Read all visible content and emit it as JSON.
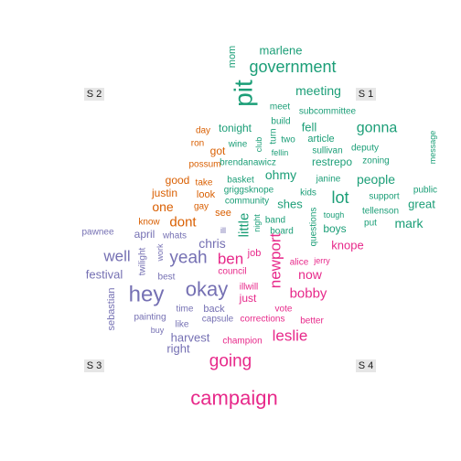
{
  "chart_data": {
    "type": "comparison-wordcloud",
    "groups": [
      {
        "label": "S 1",
        "color": "#1b9e77"
      },
      {
        "label": "S 2",
        "color": "#d95f02"
      },
      {
        "label": "S 3",
        "color": "#7570b3"
      },
      {
        "label": "S 4",
        "color": "#e7298a"
      }
    ],
    "words": [
      {
        "text": "pit",
        "group": "S 1",
        "size": 28,
        "rotated": true
      },
      {
        "text": "government",
        "group": "S 1",
        "size": 18
      },
      {
        "text": "mom",
        "group": "S 1",
        "size": 11,
        "rotated": true
      },
      {
        "text": "marlene",
        "group": "S 1",
        "size": 13
      },
      {
        "text": "meeting",
        "group": "S 1",
        "size": 14
      },
      {
        "text": "meet",
        "group": "S 1",
        "size": 10
      },
      {
        "text": "subcommittee",
        "group": "S 1",
        "size": 10
      },
      {
        "text": "build",
        "group": "S 1",
        "size": 10
      },
      {
        "text": "turn",
        "group": "S 1",
        "size": 10,
        "rotated": true
      },
      {
        "text": "fell",
        "group": "S 1",
        "size": 13
      },
      {
        "text": "gonna",
        "group": "S 1",
        "size": 16
      },
      {
        "text": "two",
        "group": "S 1",
        "size": 10
      },
      {
        "text": "article",
        "group": "S 1",
        "size": 11
      },
      {
        "text": "sullivan",
        "group": "S 1",
        "size": 10
      },
      {
        "text": "deputy",
        "group": "S 1",
        "size": 10
      },
      {
        "text": "restrepo",
        "group": "S 1",
        "size": 12
      },
      {
        "text": "zoning",
        "group": "S 1",
        "size": 10
      },
      {
        "text": "message",
        "group": "S 1",
        "size": 9,
        "rotated": true
      },
      {
        "text": "tonight",
        "group": "S 1",
        "size": 12
      },
      {
        "text": "wine",
        "group": "S 1",
        "size": 10
      },
      {
        "text": "club",
        "group": "S 1",
        "size": 9,
        "rotated": true
      },
      {
        "text": "fellin",
        "group": "S 1",
        "size": 9
      },
      {
        "text": "brendanawicz",
        "group": "S 1",
        "size": 10
      },
      {
        "text": "ohmy",
        "group": "S 1",
        "size": 14
      },
      {
        "text": "people",
        "group": "S 1",
        "size": 14
      },
      {
        "text": "basket",
        "group": "S 1",
        "size": 10
      },
      {
        "text": "janine",
        "group": "S 1",
        "size": 10
      },
      {
        "text": "griggsknope",
        "group": "S 1",
        "size": 10
      },
      {
        "text": "kids",
        "group": "S 1",
        "size": 10
      },
      {
        "text": "lot",
        "group": "S 1",
        "size": 18
      },
      {
        "text": "support",
        "group": "S 1",
        "size": 10
      },
      {
        "text": "public",
        "group": "S 1",
        "size": 10
      },
      {
        "text": "great",
        "group": "S 1",
        "size": 13
      },
      {
        "text": "community",
        "group": "S 1",
        "size": 10
      },
      {
        "text": "shes",
        "group": "S 1",
        "size": 13
      },
      {
        "text": "tough",
        "group": "S 1",
        "size": 9
      },
      {
        "text": "tellenson",
        "group": "S 1",
        "size": 10
      },
      {
        "text": "mark",
        "group": "S 1",
        "size": 14
      },
      {
        "text": "put",
        "group": "S 1",
        "size": 10
      },
      {
        "text": "little",
        "group": "S 1",
        "size": 15,
        "rotated": true
      },
      {
        "text": "night",
        "group": "S 1",
        "size": 9,
        "rotated": true
      },
      {
        "text": "band",
        "group": "S 1",
        "size": 10
      },
      {
        "text": "board",
        "group": "S 1",
        "size": 10
      },
      {
        "text": "questions",
        "group": "S 1",
        "size": 10,
        "rotated": true
      },
      {
        "text": "boys",
        "group": "S 1",
        "size": 12
      },
      {
        "text": "day",
        "group": "S 2",
        "size": 10
      },
      {
        "text": "ron",
        "group": "S 2",
        "size": 10
      },
      {
        "text": "got",
        "group": "S 2",
        "size": 12
      },
      {
        "text": "possum",
        "group": "S 2",
        "size": 10
      },
      {
        "text": "good",
        "group": "S 2",
        "size": 12
      },
      {
        "text": "take",
        "group": "S 2",
        "size": 10
      },
      {
        "text": "justin",
        "group": "S 2",
        "size": 12
      },
      {
        "text": "look",
        "group": "S 2",
        "size": 11
      },
      {
        "text": "one",
        "group": "S 2",
        "size": 14
      },
      {
        "text": "gay",
        "group": "S 2",
        "size": 10
      },
      {
        "text": "see",
        "group": "S 2",
        "size": 11
      },
      {
        "text": "know",
        "group": "S 2",
        "size": 10
      },
      {
        "text": "dont",
        "group": "S 2",
        "size": 15
      },
      {
        "text": "pawnee",
        "group": "S 3",
        "size": 10
      },
      {
        "text": "april",
        "group": "S 3",
        "size": 12
      },
      {
        "text": "whats",
        "group": "S 3",
        "size": 10
      },
      {
        "text": "ill",
        "group": "S 3",
        "size": 9
      },
      {
        "text": "well",
        "group": "S 3",
        "size": 17
      },
      {
        "text": "twilight",
        "group": "S 3",
        "size": 10,
        "rotated": true
      },
      {
        "text": "work",
        "group": "S 3",
        "size": 9,
        "rotated": true
      },
      {
        "text": "yeah",
        "group": "S 3",
        "size": 19
      },
      {
        "text": "chris",
        "group": "S 3",
        "size": 14
      },
      {
        "text": "festival",
        "group": "S 3",
        "size": 13
      },
      {
        "text": "best",
        "group": "S 3",
        "size": 10
      },
      {
        "text": "sebastian",
        "group": "S 3",
        "size": 11,
        "rotated": true
      },
      {
        "text": "hey",
        "group": "S 3",
        "size": 24
      },
      {
        "text": "okay",
        "group": "S 3",
        "size": 22
      },
      {
        "text": "time",
        "group": "S 3",
        "size": 10
      },
      {
        "text": "back",
        "group": "S 3",
        "size": 11
      },
      {
        "text": "painting",
        "group": "S 3",
        "size": 10
      },
      {
        "text": "capsule",
        "group": "S 3",
        "size": 10
      },
      {
        "text": "buy",
        "group": "S 3",
        "size": 9
      },
      {
        "text": "like",
        "group": "S 3",
        "size": 10
      },
      {
        "text": "harvest",
        "group": "S 3",
        "size": 13
      },
      {
        "text": "right",
        "group": "S 3",
        "size": 13
      },
      {
        "text": "ben",
        "group": "S 4",
        "size": 17
      },
      {
        "text": "knope",
        "group": "S 4",
        "size": 13
      },
      {
        "text": "job",
        "group": "S 4",
        "size": 11
      },
      {
        "text": "newport",
        "group": "S 4",
        "size": 17,
        "rotated": true
      },
      {
        "text": "alice",
        "group": "S 4",
        "size": 10
      },
      {
        "text": "jerry",
        "group": "S 4",
        "size": 9
      },
      {
        "text": "council",
        "group": "S 4",
        "size": 10
      },
      {
        "text": "now",
        "group": "S 4",
        "size": 14
      },
      {
        "text": "illwill",
        "group": "S 4",
        "size": 10
      },
      {
        "text": "just",
        "group": "S 4",
        "size": 12
      },
      {
        "text": "bobby",
        "group": "S 4",
        "size": 15
      },
      {
        "text": "vote",
        "group": "S 4",
        "size": 10
      },
      {
        "text": "corrections",
        "group": "S 4",
        "size": 10
      },
      {
        "text": "better",
        "group": "S 4",
        "size": 10
      },
      {
        "text": "leslie",
        "group": "S 4",
        "size": 17
      },
      {
        "text": "champion",
        "group": "S 4",
        "size": 10
      },
      {
        "text": "going",
        "group": "S 4",
        "size": 19
      },
      {
        "text": "campaign",
        "group": "S 4",
        "size": 22
      }
    ]
  }
}
